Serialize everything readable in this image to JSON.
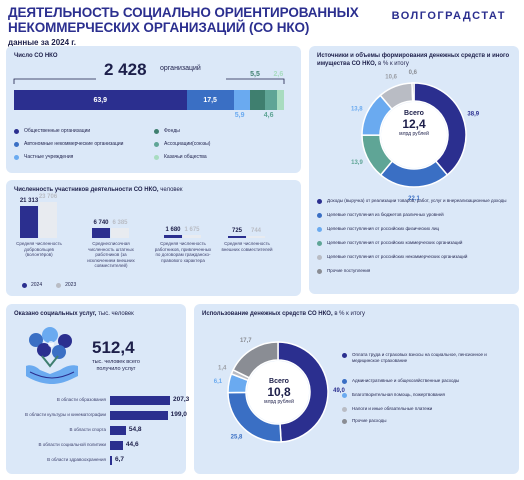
{
  "header": {
    "title_line1": "ДЕЯТЕЛЬНОСТЬ СОЦИАЛЬНО ОРИЕНТИРОВАННЫХ",
    "title_line2": "НЕКОММЕРЧЕСКИХ ОРГАНИЗАЦИЙ  (СО НКО)",
    "subtitle": "данные за 2024 г.",
    "brand": "ВОЛГОГРАДСТАТ"
  },
  "nko_panel": {
    "title": "Число СО НКО",
    "total": "2 428",
    "total_unit": "организаций",
    "legend": [
      {
        "label": "Общественные организации",
        "color": "#2b2f8f"
      },
      {
        "label": "Фонды",
        "color": "#3f7f6f"
      },
      {
        "label": "Автономные некоммерческие организации",
        "color": "#3a6fc4"
      },
      {
        "label": "Ассоциации(союзы)",
        "color": "#5fa596"
      },
      {
        "label": "Частные учреждения",
        "color": "#6aaaf0"
      },
      {
        "label": "Казачьи общества",
        "color": "#a8dcc0"
      }
    ]
  },
  "parts_panel": {
    "title": "Численность участников деятельности СО НКО,",
    "title_unit": "человек",
    "legend_2024": "2024",
    "legend_2023": "2023",
    "groups": [
      {
        "label": "Средняя численность добровольцев (волонтёров)"
      },
      {
        "label": "Среднесписочная численность штатных работников (за исключением внешних совместителей)"
      },
      {
        "label": "Средняя численность работников, привлеченных по договорам гражданско-правового характера"
      },
      {
        "label": "Средняя численность внешних совместителей"
      }
    ]
  },
  "services_panel": {
    "title": "Оказано социальных услуг,",
    "title_unit": "тыс. человек",
    "total": "512,4",
    "total_caption": "тыс. человек всего получило услуг",
    "rows": [
      {
        "label": "В области образования"
      },
      {
        "label": "В области культуры и кинематографии"
      },
      {
        "label": "В области спорта"
      },
      {
        "label": "В области социальной политики"
      },
      {
        "label": "В области здравоохранения"
      }
    ]
  },
  "sources_panel": {
    "title": "Источники и объемы формирования денежных средств и иного имущества СО НКО,",
    "title_unit": "в % к итогу",
    "center_top": "Всего",
    "center_value": "12,4",
    "center_unit": "млрд рублей",
    "legend": [
      {
        "label": "Доходы (выручка) от реализации товаров, работ, услуг и внереализационные доходы",
        "color": "#2b2f8f"
      },
      {
        "label": "Целевые поступления из бюджетов различных уровней",
        "color": "#3a6fc4"
      },
      {
        "label": "Целевые поступления от российских физических лиц",
        "color": "#6aaaf0"
      },
      {
        "label": "Целевые поступления от российских коммерческих организаций",
        "color": "#5fa596"
      },
      {
        "label": "Целевые поступления от российских некоммерческих организаций",
        "color": "#b9bcc4"
      },
      {
        "label": "Прочие поступления",
        "color": "#8a8d94"
      }
    ]
  },
  "usage_panel": {
    "title": "Использование денежных средств СО НКО,",
    "title_unit": "в % к итогу",
    "center_top": "Всего",
    "center_value": "10,8",
    "center_unit": "млрд рублей",
    "legend": [
      {
        "label": "Оплата  труда и страховых взносы на социальное, пенсионное и медицинское страхование",
        "color": "#2b2f8f"
      },
      {
        "label": "Административные и общехозяйственные расходы",
        "color": "#3a6fc4"
      },
      {
        "label": "Благотворительная помощь, пожертвования",
        "color": "#6aaaf0"
      },
      {
        "label": "Налоги и иные обязательные платежи",
        "color": "#b9bcc4"
      },
      {
        "label": "Прочие расходы",
        "color": "#8a8d94"
      }
    ]
  },
  "chart_data": [
    {
      "id": "nko_structure",
      "type": "bar",
      "title": "Число СО НКО",
      "categories": [
        "Общественные организации",
        "Автономные некоммерческие организации",
        "Частные учреждения",
        "Фонды",
        "Ассоциации(союзы)",
        "Казачьи общества"
      ],
      "values": [
        63.9,
        17.5,
        5.9,
        5.5,
        4.6,
        2.6
      ],
      "labels": [
        "63,9",
        "17,5",
        "5,9",
        "5,5",
        "4,6",
        "2,6"
      ],
      "colors": [
        "#2b2f8f",
        "#3a6fc4",
        "#6aaaf0",
        "#3f7f6f",
        "#5fa596",
        "#a8dcc0"
      ]
    },
    {
      "id": "participants",
      "type": "bar",
      "categories": [
        "Средняя численность добровольцев (волонтёров)",
        "Среднесписочная численность штатных работников (за исключением внешних совместителей)",
        "Средняя численность работников, привлеченных по договорам гражданско-правового характера",
        "Средняя численность внешних совместителей"
      ],
      "series": [
        {
          "name": "2024",
          "values": [
            21313,
            6740,
            1680,
            725
          ],
          "labels": [
            "21 313",
            "6 740",
            "1 680",
            "725"
          ],
          "color": "#2b2f8f"
        },
        {
          "name": "2023",
          "values": [
            23706,
            6385,
            1675,
            744
          ],
          "labels": [
            "23 706",
            "6 385",
            "1 675",
            "744"
          ],
          "color": "#b9bcc4"
        }
      ]
    },
    {
      "id": "services",
      "type": "bar",
      "categories": [
        "В области образования",
        "В области культуры и кинематографии",
        "В области спорта",
        "В области социальной политики",
        "В области здравоохранения"
      ],
      "values": [
        207.3,
        199.0,
        54.8,
        44.6,
        6.7
      ],
      "labels": [
        "207,3",
        "199,0",
        "54,8",
        "44,6",
        "6,7"
      ]
    },
    {
      "id": "sources",
      "type": "pie",
      "categories": [
        "Доходы (выручка) от реализации товаров, работ, услуг и внереализационные доходы",
        "Целевые поступления из бюджетов различных уровней",
        "Целевые поступления от российских физических лиц",
        "Целевые поступления от российских коммерческих организаций",
        "Целевые поступления от российских некоммерческих организаций",
        "Прочие поступления"
      ],
      "values": [
        38.9,
        22.1,
        13.8,
        13.9,
        10.6,
        0.6
      ],
      "labels": [
        "38,9",
        "22,1",
        "13,8",
        "13,9",
        "10,6",
        "0,6"
      ],
      "colors": [
        "#2b2f8f",
        "#3a6fc4",
        "#6aaaf0",
        "#5fa596",
        "#b9bcc4",
        "#8a8d94"
      ]
    },
    {
      "id": "usage",
      "type": "pie",
      "categories": [
        "Оплата  труда и страховых взносы на социальное, пенсионное и медицинское страхование",
        "Административные и общехозяйственные расходы",
        "Благотворительная помощь, пожертвования",
        "Налоги и иные обязательные платежи",
        "Прочие расходы"
      ],
      "values": [
        49.0,
        25.8,
        6.1,
        1.4,
        17.7
      ],
      "labels": [
        "49,0",
        "25,8",
        "6,1",
        "1,4",
        "17,7"
      ],
      "colors": [
        "#2b2f8f",
        "#3a6fc4",
        "#6aaaf0",
        "#b9bcc4",
        "#8a8d94"
      ]
    }
  ]
}
